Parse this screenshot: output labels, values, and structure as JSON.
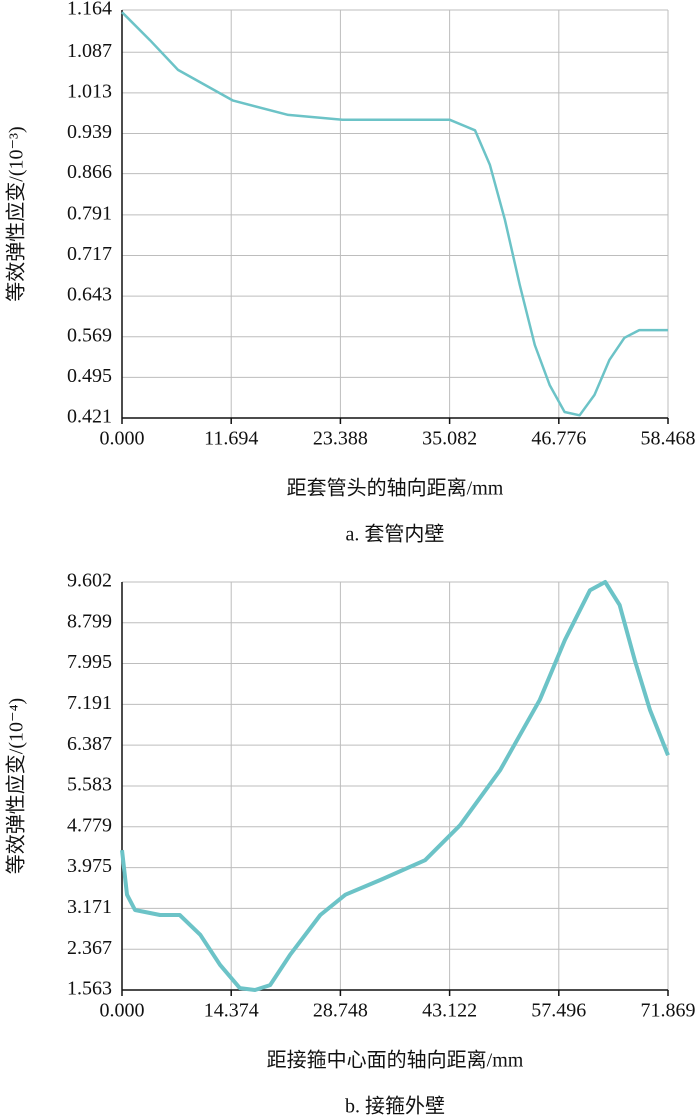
{
  "chart_data": [
    {
      "type": "line",
      "x_label": "距套管头的轴向距离/mm",
      "y_label": "等效弹性应变/(10⁻³)",
      "caption": "a. 套管内壁",
      "grid": true,
      "xlim": [
        0,
        58.468
      ],
      "xticks": [
        {
          "value": 0,
          "label": "0.000"
        },
        11.694,
        23.388,
        35.082,
        46.776,
        58.468
      ],
      "ylim": [
        0.421,
        1.164
      ],
      "yticks": [
        0.421,
        0.495,
        0.569,
        0.643,
        0.717,
        0.791,
        0.866,
        0.939,
        1.013,
        1.087,
        1.164
      ],
      "series": [
        {
          "color": "#6cc3c7",
          "x": [
            0,
            3.0,
            6.0,
            11.9,
            17.8,
            23.6,
            29.5,
            35.1,
            37.8,
            39.4,
            41.0,
            42.6,
            44.2,
            45.8,
            47.4,
            49.0,
            50.6,
            52.2,
            53.8,
            55.4,
            58.468
          ],
          "values": [
            1.16,
            1.109,
            1.055,
            0.999,
            0.973,
            0.964,
            0.964,
            0.964,
            0.945,
            0.882,
            0.782,
            0.663,
            0.554,
            0.481,
            0.432,
            0.426,
            0.463,
            0.527,
            0.567,
            0.581,
            0.581
          ]
        }
      ]
    },
    {
      "type": "line",
      "x_label": "距接箍中心面的轴向距离/mm",
      "y_label": "等效弹性应变/(10⁻⁴)",
      "caption": "b. 接箍外壁",
      "grid": true,
      "xlim": [
        0,
        71.869
      ],
      "xticks": [
        {
          "value": 0,
          "label": "0.000"
        },
        14.374,
        28.748,
        43.122,
        57.496,
        71.869
      ],
      "ylim": [
        1.563,
        9.602
      ],
      "yticks": [
        1.563,
        2.367,
        3.171,
        3.975,
        4.779,
        5.583,
        6.387,
        7.191,
        7.995,
        8.799,
        9.602
      ],
      "series": [
        {
          "color": "#6cc3c7",
          "x": [
            0,
            0.66,
            1.71,
            5.0,
            7.6,
            10.3,
            12.9,
            15.5,
            17.5,
            19.5,
            22.1,
            26.1,
            29.4,
            34.0,
            39.9,
            44.5,
            49.8,
            55.0,
            58.3,
            61.6,
            63.6,
            65.5,
            67.5,
            69.5,
            71.869
          ],
          "values": [
            4.32,
            3.44,
            3.14,
            3.04,
            3.04,
            2.65,
            2.06,
            1.6,
            1.563,
            1.66,
            2.25,
            3.04,
            3.44,
            3.73,
            4.12,
            4.81,
            5.9,
            7.28,
            8.46,
            9.44,
            9.602,
            9.15,
            8.06,
            7.08,
            6.19
          ]
        }
      ]
    }
  ]
}
